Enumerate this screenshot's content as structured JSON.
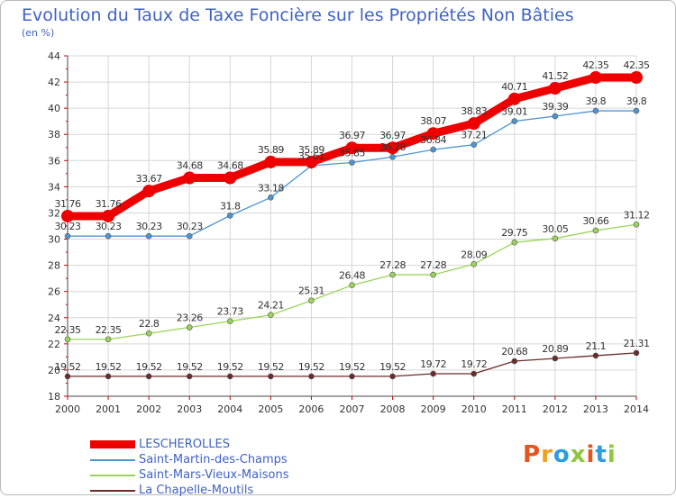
{
  "title": "Evolution du Taux de Taxe Foncière sur les Propriétés Non Bâties",
  "subtitle": "(en %)",
  "logo": {
    "text": "Proxiti",
    "colors": [
      "#e8541d",
      "#f0a21b",
      "#2f9be0",
      "#8fc63f",
      "#e8541d",
      "#2f9be0",
      "#8fc63f"
    ]
  },
  "chart_data": {
    "type": "line",
    "x": [
      "2000",
      "2001",
      "2002",
      "2003",
      "2004",
      "2005",
      "2006",
      "2007",
      "2008",
      "2009",
      "2010",
      "2011",
      "2012",
      "2013",
      "2014"
    ],
    "ylim": [
      18,
      44
    ],
    "yticks": [
      18,
      20,
      22,
      24,
      26,
      28,
      30,
      32,
      34,
      36,
      38,
      40,
      42,
      44
    ],
    "grid": true,
    "legend": "bottom-left",
    "series": [
      {
        "name": "LESCHEROLLES",
        "color": "#ee0000",
        "values": [
          31.76,
          31.76,
          33.67,
          34.68,
          34.68,
          35.89,
          35.89,
          36.97,
          36.97,
          38.07,
          38.83,
          40.71,
          41.52,
          42.35,
          42.35
        ],
        "labels": [
          "31.76",
          "31.76",
          "33.67",
          "34.68",
          "34.68",
          "35.89",
          "35.89",
          "36.97",
          "36.97",
          "38.07",
          "38.83",
          "40.71",
          "41.52",
          "42.35",
          "42.35"
        ]
      },
      {
        "name": "Saint-Martin-des-Champs",
        "color": "#4d94d3",
        "values": [
          30.23,
          30.23,
          30.23,
          30.23,
          31.8,
          33.18,
          35.61,
          35.85,
          36.28,
          36.84,
          37.21,
          39.01,
          39.39,
          39.8,
          39.8
        ],
        "labels": [
          "30.23",
          "30.23",
          "30.23",
          "30.23",
          "31.8",
          "33.18",
          "35.61",
          "35.85",
          "36.28",
          "36.84",
          "37.21",
          "39.01",
          "39.39",
          "39.8",
          "39.8"
        ]
      },
      {
        "name": "Saint-Mars-Vieux-Maisons",
        "color": "#9bd35a",
        "values": [
          22.35,
          22.35,
          22.8,
          23.26,
          23.73,
          24.21,
          25.31,
          26.48,
          27.28,
          27.28,
          28.09,
          29.75,
          30.05,
          30.66,
          31.12
        ],
        "labels": [
          "22.35",
          "22.35",
          "22.8",
          "23.26",
          "23.73",
          "24.21",
          "25.31",
          "26.48",
          "27.28",
          "27.28",
          "28.09",
          "29.75",
          "30.05",
          "30.66",
          "31.12"
        ]
      },
      {
        "name": "La Chapelle-Moutils",
        "color": "#6b2b2b",
        "values": [
          19.52,
          19.52,
          19.52,
          19.52,
          19.52,
          19.52,
          19.52,
          19.52,
          19.52,
          19.72,
          19.72,
          20.68,
          20.89,
          21.1,
          21.31
        ],
        "labels": [
          "19.52",
          "19.52",
          "19.52",
          "19.52",
          "19.52",
          "19.52",
          "19.52",
          "19.52",
          "19.52",
          "19.72",
          "19.72",
          "20.68",
          "20.89",
          "21.1",
          "21.31"
        ]
      }
    ]
  }
}
